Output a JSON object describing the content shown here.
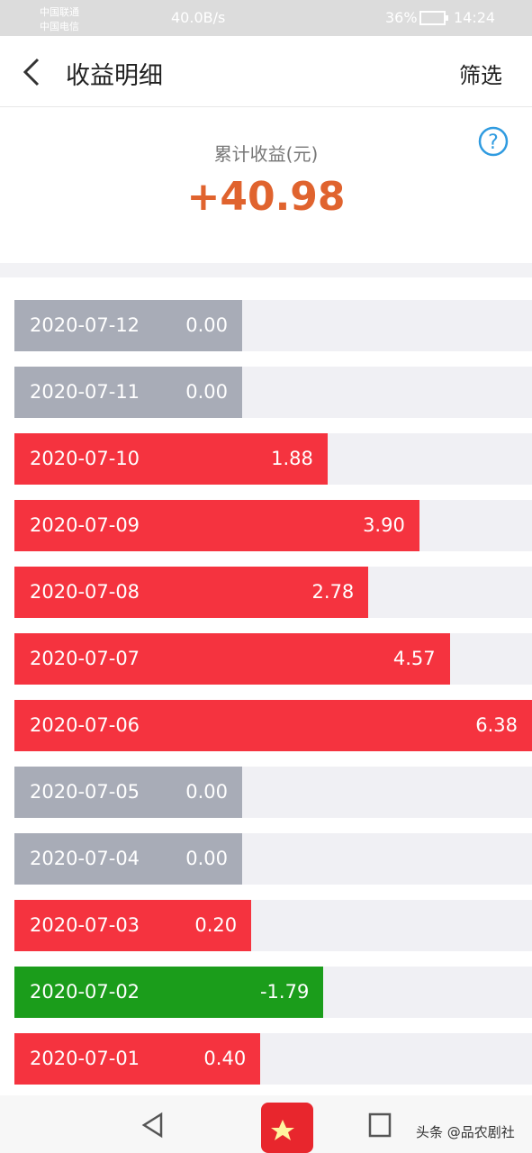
{
  "status_bar": {
    "carrier_1": "中国联通",
    "carrier_2": "中国电信",
    "speed": "40.0B/s",
    "battery": "36%",
    "time": "14:24"
  },
  "header": {
    "title": "收益明细",
    "filter": "筛选"
  },
  "summary": {
    "label": "累计收益(元)",
    "total": "+40.98"
  },
  "chart_data": {
    "type": "bar",
    "categories": [
      "2020-07-12",
      "2020-07-11",
      "2020-07-10",
      "2020-07-09",
      "2020-07-08",
      "2020-07-07",
      "2020-07-06",
      "2020-07-05",
      "2020-07-04",
      "2020-07-03",
      "2020-07-02",
      "2020-07-01"
    ],
    "values": [
      0,
      0,
      1.88,
      3.9,
      2.78,
      4.57,
      6.38,
      0,
      0,
      0.2,
      -1.79,
      0.4
    ],
    "value_labels": [
      "0.00",
      "0.00",
      "1.88",
      "3.90",
      "2.78",
      "4.57",
      "6.38",
      "0.00",
      "0.00",
      "0.20",
      "-1.79",
      "0.40"
    ],
    "colors": {
      "positive": "#f5333f",
      "zero": "#a8acb7",
      "negative": "#1b9d1b"
    }
  },
  "watermark": "头条 @品农剧社"
}
